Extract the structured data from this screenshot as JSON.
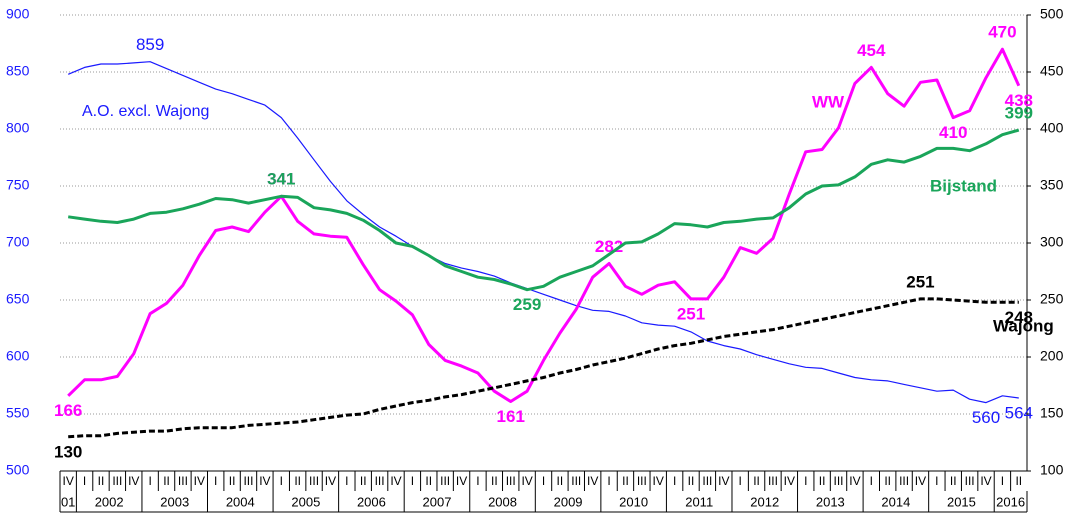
{
  "chart_data": {
    "type": "line",
    "categories": [
      "IV",
      "I",
      "II",
      "III",
      "IV",
      "I",
      "II",
      "III",
      "IV",
      "I",
      "II",
      "III",
      "IV",
      "I",
      "II",
      "III",
      "IV",
      "I",
      "II",
      "III",
      "IV",
      "I",
      "II",
      "III",
      "IV",
      "I",
      "II",
      "III",
      "IV",
      "I",
      "II",
      "III",
      "IV",
      "I",
      "II",
      "III",
      "IV",
      "I",
      "II",
      "III",
      "IV",
      "I",
      "II",
      "III",
      "IV",
      "I",
      "II",
      "III",
      "IV",
      "I",
      "II",
      "III",
      "IV",
      "I",
      "II",
      "III",
      "IV",
      "I",
      "II"
    ],
    "years": [
      "01",
      "2002",
      "2003",
      "2004",
      "2005",
      "2006",
      "2007",
      "2008",
      "2009",
      "2010",
      "2011",
      "2012",
      "2013",
      "2014",
      "2015",
      "2016"
    ],
    "ylim": [
      500,
      900
    ],
    "yticks": [
      500,
      550,
      600,
      650,
      700,
      750,
      800,
      850,
      900
    ],
    "y2lim": [
      100,
      500
    ],
    "y2ticks": [
      100,
      150,
      200,
      250,
      300,
      350,
      400,
      450,
      500
    ],
    "grid": true,
    "series": [
      {
        "name": "A.O. excl. Wajong",
        "color": "#1a1aff",
        "axis": "y",
        "width": 1.2,
        "values": [
          848,
          854,
          857,
          857,
          858,
          859,
          853,
          847,
          841,
          835,
          831,
          826,
          821,
          810,
          792,
          773,
          754,
          737,
          725,
          714,
          706,
          697,
          689,
          682,
          678,
          675,
          671,
          665,
          660,
          655,
          650,
          645,
          641,
          640,
          636,
          630,
          628,
          627,
          622,
          614,
          610,
          607,
          602,
          598,
          594,
          591,
          590,
          586,
          582,
          580,
          579,
          576,
          573,
          570,
          571,
          563,
          560,
          566,
          564
        ],
        "labeled_points": [
          5,
          56,
          58
        ]
      },
      {
        "name": "WW",
        "color": "#ff00ff",
        "axis": "y2",
        "width": 3,
        "values": [
          166,
          180,
          180,
          183,
          203,
          238,
          247,
          263,
          289,
          311,
          314,
          310,
          327,
          341,
          319,
          308,
          306,
          305,
          281,
          259,
          249,
          237,
          211,
          197,
          192,
          186,
          170,
          161,
          170,
          197,
          221,
          242,
          270,
          282,
          262,
          255,
          263,
          266,
          251,
          251,
          270,
          296,
          291,
          304,
          343,
          380,
          382,
          401,
          440,
          454,
          431,
          420,
          441,
          443,
          410,
          416,
          445,
          470,
          438
        ],
        "labeled_points": [
          0,
          13,
          27,
          33,
          38,
          49,
          54,
          57,
          58
        ]
      },
      {
        "name": "Bijstand",
        "color": "#1aa55a",
        "axis": "y2",
        "width": 3,
        "values": [
          323,
          321,
          319,
          318,
          321,
          326,
          327,
          330,
          334,
          339,
          338,
          335,
          338,
          341,
          340,
          331,
          329,
          326,
          320,
          311,
          300,
          297,
          289,
          280,
          275,
          270,
          268,
          264,
          259,
          262,
          270,
          275,
          280,
          290,
          300,
          301,
          308,
          317,
          316,
          314,
          318,
          319,
          321,
          322,
          331,
          343,
          350,
          351,
          358,
          369,
          373,
          371,
          376,
          383,
          383,
          381,
          387,
          395,
          399
        ],
        "labeled_points": [
          13,
          28,
          58
        ]
      },
      {
        "name": "Wajong",
        "color": "#000000",
        "axis": "y2",
        "width": 3,
        "dashed": true,
        "values": [
          130,
          131,
          131,
          133,
          134,
          135,
          135,
          137,
          138,
          138,
          138,
          140,
          141,
          142,
          143,
          145,
          147,
          149,
          150,
          154,
          157,
          160,
          162,
          165,
          167,
          170,
          173,
          176,
          179,
          182,
          186,
          189,
          193,
          196,
          199,
          203,
          207,
          210,
          212,
          215,
          218,
          220,
          222,
          224,
          227,
          230,
          233,
          236,
          239,
          242,
          245,
          248,
          251,
          251,
          250,
          249,
          248,
          248,
          248
        ],
        "labeled_points": [
          0,
          52,
          58
        ]
      }
    ]
  }
}
